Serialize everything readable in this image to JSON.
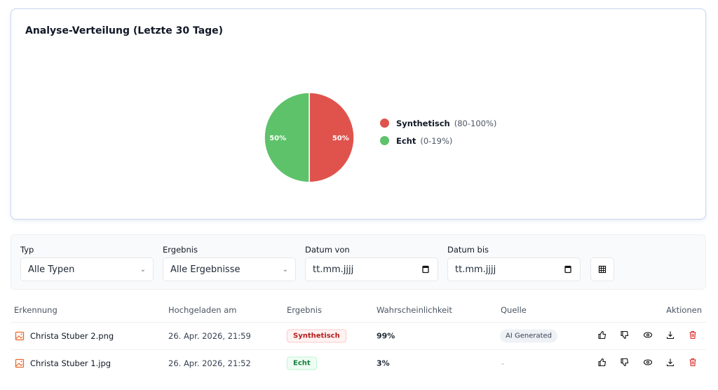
{
  "chart": {
    "title": "Analyse-Verteilung (Letzte 30 Tage)"
  },
  "chart_data": {
    "type": "pie",
    "title": "Analyse-Verteilung (Letzte 30 Tage)",
    "slices": [
      {
        "name": "Synthetisch",
        "range": "(80-100%)",
        "value": 50,
        "label": "50%",
        "color": "#e0534d"
      },
      {
        "name": "Echt",
        "range": "(0-19%)",
        "value": 50,
        "label": "50%",
        "color": "#5ec26a"
      }
    ],
    "legend": "right"
  },
  "filters": {
    "type": {
      "label": "Typ",
      "value": "Alle Typen"
    },
    "result": {
      "label": "Ergebnis",
      "value": "Alle Ergebnisse"
    },
    "from": {
      "label": "Datum von",
      "placeholder": "tt.mm.jjjj"
    },
    "to": {
      "label": "Datum bis",
      "placeholder": "tt.mm.jjjj"
    }
  },
  "table": {
    "headers": [
      "Erkennung",
      "Hochgeladen am",
      "Ergebnis",
      "Wahrscheinlichkeit",
      "Quelle",
      "Aktionen"
    ],
    "rows": [
      {
        "name": "Christa Stuber 2.png",
        "date": "26. Apr. 2026, 21:59",
        "result": "Synthetisch",
        "prob": "99%",
        "source": "AI Generated"
      },
      {
        "name": "Christa Stuber 1.jpg",
        "date": "26. Apr. 2026, 21:52",
        "result": "Echt",
        "prob": "3%",
        "source": "-"
      }
    ]
  }
}
